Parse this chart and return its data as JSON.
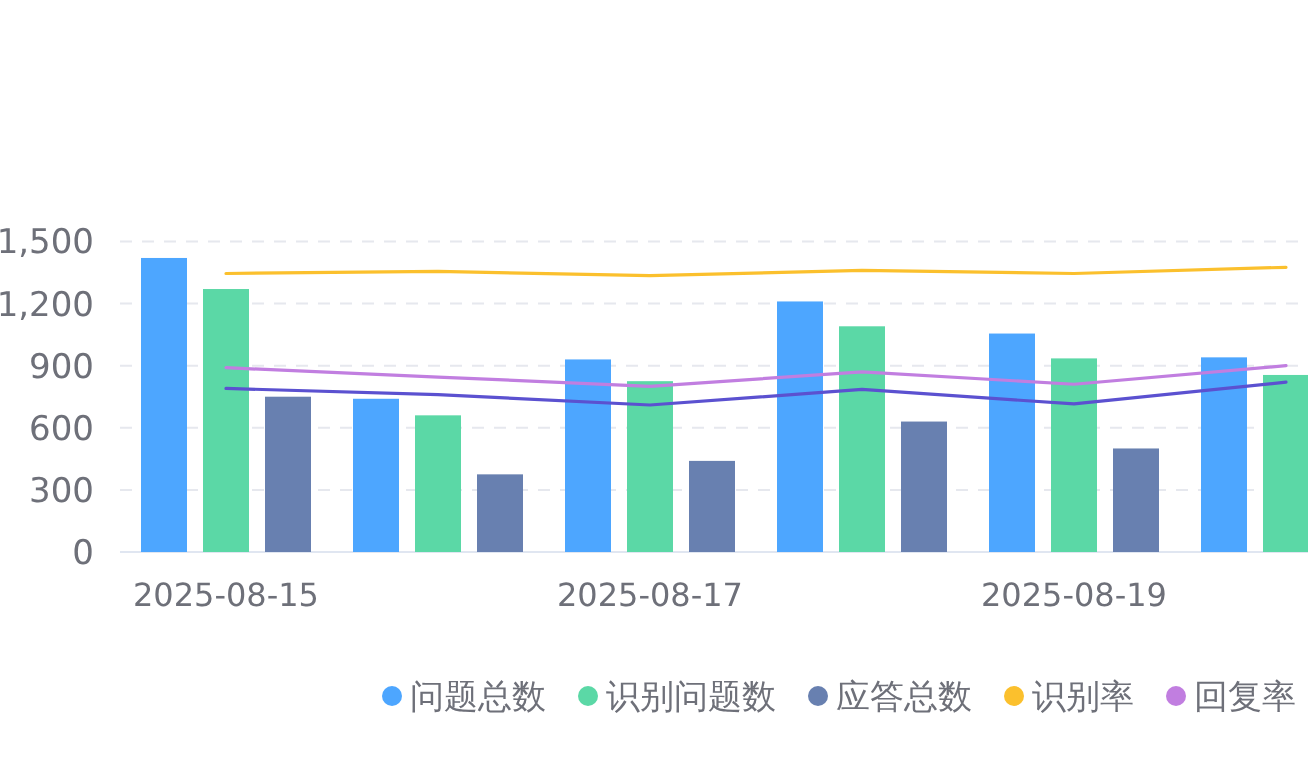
{
  "chart_data": {
    "type": "bar",
    "categories": [
      "2025-08-15",
      null,
      "2025-08-17",
      null,
      "2025-08-19",
      null
    ],
    "series": [
      {
        "name": "问题总数",
        "color": "#4da6ff",
        "values": [
          1420,
          740,
          930,
          1210,
          1055,
          940
        ]
      },
      {
        "name": "识别问题数",
        "color": "#5bd8a6",
        "values": [
          1270,
          660,
          825,
          1090,
          935,
          855
        ]
      },
      {
        "name": "应答总数",
        "color": "#6880b0",
        "values": [
          750,
          375,
          440,
          630,
          500,
          null
        ]
      },
      {
        "name": "识别率",
        "type": "line",
        "color": "#fbc02d",
        "values": [
          1345,
          1355,
          1335,
          1360,
          1345,
          1375
        ]
      },
      {
        "name": "回复率",
        "type": "line",
        "color": "#c17ee0",
        "values": [
          890,
          845,
          800,
          870,
          810,
          900
        ]
      },
      {
        "type": "line",
        "color": "#5b51d0",
        "values": [
          790,
          760,
          710,
          785,
          715,
          820
        ]
      }
    ],
    "ylim": [
      0,
      1500
    ],
    "yticks": [
      0,
      {
        "value": 300,
        "label": "300"
      },
      {
        "value": 600,
        "label": "600"
      },
      {
        "value": 900,
        "label": "900"
      },
      {
        "value": 1200,
        "label": "1,200"
      },
      {
        "value": 1500,
        "label": "1,500"
      }
    ],
    "grid": "y",
    "legend": "bottom right"
  }
}
